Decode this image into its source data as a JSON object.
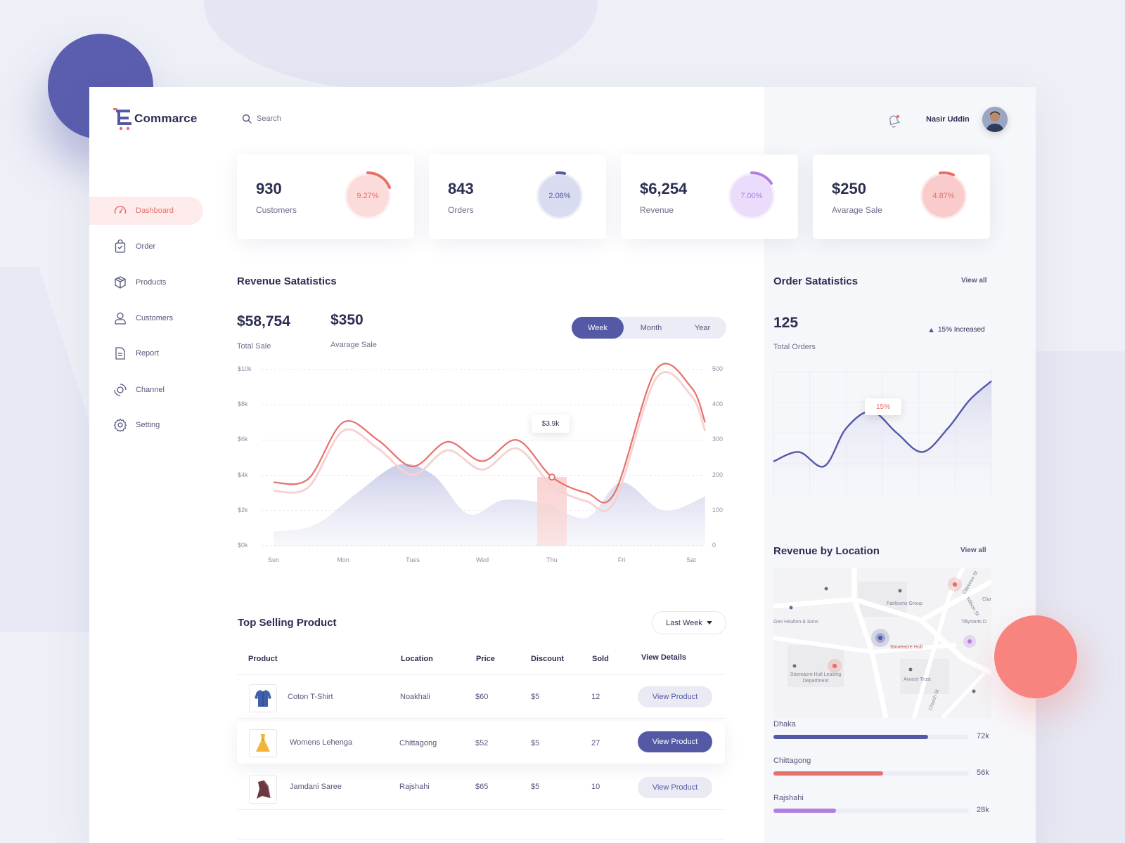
{
  "app": {
    "logo_text": "Commarce"
  },
  "colors": {
    "accent": "#5459a6",
    "coral": "#e8706b",
    "purple": "#b07fe0"
  },
  "nav": [
    {
      "label": "Dashboard",
      "icon": "speedometer-icon",
      "active": true
    },
    {
      "label": "Order",
      "icon": "bag-icon"
    },
    {
      "label": "Products",
      "icon": "box-icon"
    },
    {
      "label": "Customers",
      "icon": "user-icon"
    },
    {
      "label": "Report",
      "icon": "document-icon"
    },
    {
      "label": "Channel",
      "icon": "channel-icon"
    },
    {
      "label": "Setting",
      "icon": "gear-icon"
    }
  ],
  "header": {
    "search_placeholder": "Search",
    "user_name": "Nasir Uddin"
  },
  "stats": [
    {
      "value": "930",
      "label": "Customers",
      "percent": "9.27%",
      "color": "#e8706b"
    },
    {
      "value": "843",
      "label": "Orders",
      "percent": "2.08%",
      "color": "#5459a6"
    },
    {
      "value": "$6,254",
      "label": "Revenue",
      "percent": "7.00%",
      "color": "#b07fe0"
    },
    {
      "value": "$250",
      "label": "Avarage Sale",
      "percent": "4.87%",
      "color": "#e8706b"
    }
  ],
  "revenue": {
    "title": "Revenue Satatistics",
    "total_value": "$58,754",
    "total_label": "Total Sale",
    "avg_value": "$350",
    "avg_label": "Avarage Sale",
    "tabs": [
      "Week",
      "Month",
      "Year"
    ],
    "active_tab": "Week",
    "tooltip": "$3.9k"
  },
  "chart_data": [
    {
      "type": "line",
      "title": "Revenue Satatistics",
      "categories": [
        "Sun",
        "Mon",
        "Tues",
        "Wed",
        "Thu",
        "Fri",
        "Sat"
      ],
      "y_ticks": [
        "$10k",
        "$8k",
        "$6k",
        "$4k",
        "$2k",
        "$0k"
      ],
      "y2_ticks": [
        "500",
        "400",
        "300",
        "200",
        "100",
        "0"
      ],
      "ylim": [
        0,
        10000
      ],
      "y2lim": [
        0,
        500
      ],
      "series": [
        {
          "axis": "left",
          "color": "#e8706b",
          "x": [
            0,
            0.5,
            1,
            1.5,
            2,
            2.5,
            3,
            3.5,
            4,
            4.5,
            4.9,
            5.5,
            6,
            6.2
          ],
          "values": [
            3600,
            3800,
            7000,
            6000,
            4500,
            5900,
            4800,
            6000,
            3900,
            3000,
            3000,
            10000,
            9000,
            7000
          ]
        },
        {
          "axis": "right",
          "type": "area",
          "color": "#c9cbe8",
          "x": [
            0,
            0.6,
            1.2,
            1.8,
            2.3,
            2.8,
            3.3,
            3.9,
            4.5,
            5.0,
            5.6,
            6.2
          ],
          "values": [
            40,
            60,
            150,
            230,
            200,
            90,
            130,
            120,
            80,
            180,
            100,
            140
          ]
        }
      ],
      "highlight": {
        "category": "Thu",
        "label": "$3.9k"
      }
    },
    {
      "type": "area",
      "title": "Order Satatistics",
      "x": [
        0,
        0.7,
        1.4,
        2.0,
        2.7,
        3.4,
        4.1,
        4.8,
        5.4,
        6.0
      ],
      "values": [
        35,
        45,
        30,
        70,
        88,
        65,
        45,
        70,
        100,
        120
      ],
      "ylim": [
        0,
        130
      ],
      "highlight": {
        "label": "15%"
      },
      "color": "#5459a6"
    }
  ],
  "orders": {
    "title": "Order Satatistics",
    "view_all": "View all",
    "total_value": "125",
    "total_label": "Total Orders",
    "increase": "15% Increased"
  },
  "products": {
    "title": "Top Selling Product",
    "filter": "Last Week",
    "headers": [
      "Product",
      "Location",
      "Price",
      "Discount",
      "Sold",
      "View Details"
    ],
    "rows": [
      {
        "name": "Coton T-Shirt",
        "location": "Noakhali",
        "price": "$60",
        "discount": "$5",
        "sold": "12",
        "action": "View Product",
        "icon": "shirt-icon"
      },
      {
        "name": "Womens Lehenga",
        "location": "Chittagong",
        "price": "$52",
        "discount": "$5",
        "sold": "27",
        "action": "View Product",
        "icon": "dress-icon"
      },
      {
        "name": "Jamdani Saree",
        "location": "Rajshahi",
        "price": "$65",
        "discount": "$5",
        "sold": "10",
        "action": "View Product",
        "icon": "saree-icon"
      }
    ]
  },
  "location": {
    "title": "Revenue by Location",
    "view_all": "View all",
    "map_labels": [
      "Fairburns Group",
      "Geo Houlton & Sons",
      "Stoneacre Hull",
      "Stoneacre Hull Leasing Department",
      "Avocet Trust",
      "Tillymints D",
      "Clar",
      "Wilson St",
      "Church St",
      "Clarence St"
    ],
    "items": [
      {
        "name": "Dhaka",
        "value": "72k",
        "fraction": 0.79,
        "color": "#5459a6"
      },
      {
        "name": "Chittagong",
        "value": "56k",
        "fraction": 0.56,
        "color": "#e8706b"
      },
      {
        "name": "Rajshahi",
        "value": "28k",
        "fraction": 0.32,
        "color": "#b07fe0"
      }
    ]
  }
}
